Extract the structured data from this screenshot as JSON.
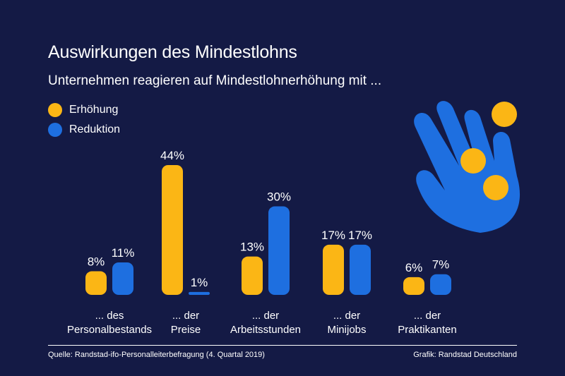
{
  "title": "Auswirkungen des Mindestlohns",
  "subtitle": "Unternehmen reagieren auf Mindestlohnerhöhung mit ...",
  "colors": {
    "background": "#141a45",
    "erhoehung": "#fbb615",
    "reduktion": "#1e6fe0"
  },
  "legend": [
    {
      "label": "Erhöhung",
      "color": "#fbb615"
    },
    {
      "label": "Reduktion",
      "color": "#1e6fe0"
    }
  ],
  "chart_data": {
    "type": "bar",
    "title": "Auswirkungen des Mindestlohns",
    "subtitle": "Unternehmen reagieren auf Mindestlohnerhöhung mit ...",
    "categories": [
      {
        "line1": "... des",
        "line2": "Personalbestands"
      },
      {
        "line1": "... der",
        "line2": "Preise"
      },
      {
        "line1": "... der",
        "line2": "Arbeitsstunden"
      },
      {
        "line1": "... der",
        "line2": "Minijobs"
      },
      {
        "line1": "... der",
        "line2": "Praktikanten"
      }
    ],
    "series": [
      {
        "name": "Erhöhung",
        "values": [
          8,
          44,
          13,
          17,
          6
        ],
        "labels": [
          "8%",
          "44%",
          "13%",
          "17%",
          "6%"
        ]
      },
      {
        "name": "Reduktion",
        "values": [
          11,
          1,
          30,
          17,
          7
        ],
        "labels": [
          "11%",
          "1%",
          "30%",
          "17%",
          "7%"
        ]
      }
    ],
    "ylim": [
      0,
      44
    ],
    "legend_position": "top-left",
    "grid": false
  },
  "footer": {
    "source": "Quelle: Randstad-ifo-Personalleiterbefragung (4. Quartal 2019)",
    "credit": "Grafik: Randstad Deutschland"
  },
  "decoration": {
    "icon": "hand-with-coins-icon"
  }
}
